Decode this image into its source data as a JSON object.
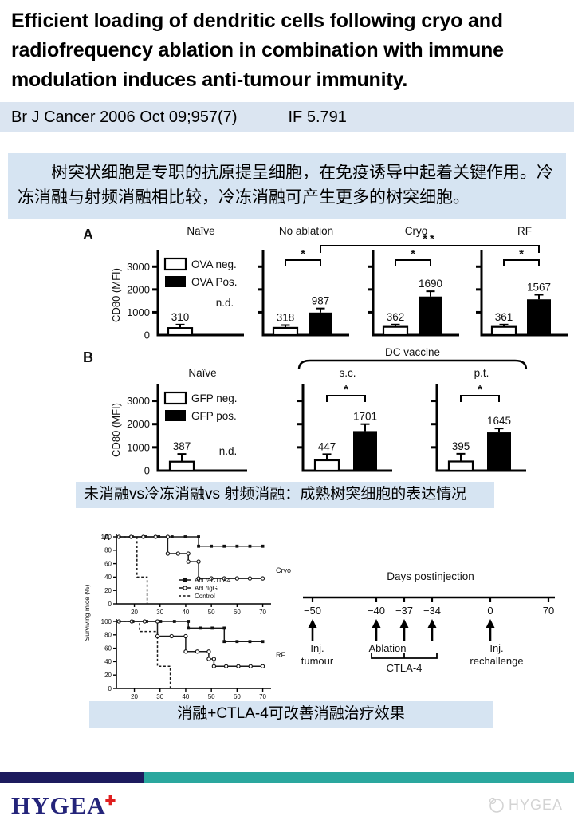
{
  "colors": {
    "bar_blue": "#dbe5f1",
    "box_blue": "#d6e4f2",
    "footer_navy": "#1d1b5e",
    "footer_teal": "#2aa79e",
    "logo_navy": "#24247a",
    "logo_red": "#e01f1f",
    "watermark_gray": "#d3d3d3"
  },
  "header": {
    "title": "Efficient loading of dendritic cells following cryo and radiofrequency ablation in combination with immune modulation induces anti-tumour immunity.",
    "citation": "Br J Cancer 2006 Oct 09;957(7)",
    "impact_factor": "IF 5.791"
  },
  "summary": {
    "text": "树突状细胞是专职的抗原提呈细胞，在免疫诱导中起着关键作用。冷冻消融与射频消融相比较，冷冻消融可产生更多的树突细胞。"
  },
  "captions": {
    "figure1": "未消融vs冷冻消融vs 射频消融：成熟树突细胞的表达情况",
    "figure2": "消融+CTLA-4可改善消融治疗效果"
  },
  "footer": {
    "logo_text": "HYGEA",
    "logo_cross": "✚",
    "watermark_text": "HYGEA"
  },
  "chart_data": [
    {
      "id": "fig1_panel_A",
      "type": "bar",
      "panel_label": "A",
      "ylabel": "CD80 (MFI)",
      "yticks": [
        0,
        1000,
        2000,
        3000
      ],
      "ylim": [
        0,
        3500
      ],
      "legend": [
        "OVA neg.",
        "OVA Pos."
      ],
      "nd_label": "n.d.",
      "categories": [
        "Naïve",
        "No ablation",
        "Cryo",
        "RF"
      ],
      "series": [
        {
          "name": "OVA neg.",
          "fill": "white",
          "values": [
            310,
            318,
            362,
            361
          ],
          "errors": [
            150,
            120,
            100,
            100
          ]
        },
        {
          "name": "OVA Pos.",
          "fill": "black",
          "values": [
            null,
            987,
            1690,
            1567
          ],
          "errors": [
            null,
            180,
            230,
            200
          ]
        }
      ],
      "group_sig": [
        null,
        "*",
        "*",
        "*"
      ],
      "span_sig": {
        "from_group": 1,
        "to_group": 3,
        "label": "**"
      }
    },
    {
      "id": "fig1_panel_B",
      "type": "bar",
      "panel_label": "B",
      "ylabel": "CD80 (MFI)",
      "yticks": [
        0,
        1000,
        2000,
        3000
      ],
      "ylim": [
        0,
        3500
      ],
      "legend": [
        "GFP neg.",
        "GFP pos."
      ],
      "nd_label": "n.d.",
      "categories": [
        "Naïve",
        "s.c.",
        "p.t."
      ],
      "series": [
        {
          "name": "GFP neg.",
          "fill": "white",
          "values": [
            387,
            447,
            395
          ],
          "errors": [
            330,
            260,
            330
          ]
        },
        {
          "name": "GFP pos.",
          "fill": "black",
          "values": [
            null,
            1701,
            1645
          ],
          "errors": [
            null,
            300,
            170
          ]
        }
      ],
      "group_sig": [
        null,
        "*",
        "*"
      ],
      "brace": {
        "from_group": 1,
        "to_group": 2,
        "label": "DC vaccine"
      }
    },
    {
      "id": "fig2_survival",
      "type": "line",
      "subtype": "kaplan-meier-step",
      "panel_label": "A",
      "ylabel": "Surviving mice (%)",
      "xlim": [
        13,
        72
      ],
      "xticks": [
        20,
        30,
        40,
        50,
        60,
        70
      ],
      "yticks": [
        0,
        20,
        40,
        60,
        80,
        100
      ],
      "legend": [
        "Abl./aCTLA4",
        "Abl./IgG",
        "Control"
      ],
      "panels": [
        {
          "label": "Cryo",
          "series": [
            {
              "name": "Abl./aCTLA4",
              "marker": "filled-square",
              "line": "solid",
              "x": [
                14,
                45,
                45,
                70
              ],
              "y": [
                100,
                100,
                86,
                86
              ]
            },
            {
              "name": "Abl./IgG",
              "marker": "open-circle",
              "line": "solid",
              "x": [
                14,
                33,
                33,
                41,
                41,
                45,
                45,
                70
              ],
              "y": [
                100,
                100,
                75,
                75,
                63,
                63,
                38,
                38
              ]
            },
            {
              "name": "Control",
              "marker": "none",
              "line": "dashed",
              "x": [
                14,
                21,
                21,
                25,
                25
              ],
              "y": [
                100,
                100,
                40,
                40,
                0
              ]
            }
          ]
        },
        {
          "label": "RF",
          "series": [
            {
              "name": "Abl./aCTLA4",
              "marker": "filled-square",
              "line": "solid",
              "x": [
                14,
                41,
                41,
                55,
                55,
                70
              ],
              "y": [
                100,
                100,
                90,
                90,
                70,
                70
              ]
            },
            {
              "name": "Abl./IgG",
              "marker": "open-circle",
              "line": "solid",
              "x": [
                14,
                29,
                29,
                40,
                40,
                49,
                49,
                51,
                51,
                70
              ],
              "y": [
                100,
                100,
                78,
                78,
                55,
                55,
                44,
                44,
                33,
                33
              ]
            },
            {
              "name": "Control",
              "marker": "none",
              "line": "dashed",
              "x": [
                14,
                22,
                22,
                29,
                29,
                34,
                34
              ],
              "y": [
                100,
                100,
                85,
                85,
                33,
                33,
                0
              ]
            }
          ]
        }
      ]
    },
    {
      "id": "fig2_timeline",
      "type": "line",
      "subtype": "timeline",
      "title": "Days postinjection",
      "tick_days": [
        -50,
        -40,
        -37,
        -34,
        0,
        70
      ],
      "tick_labels": [
        "−50",
        "−40",
        "−37",
        "−34",
        "0",
        "70"
      ],
      "arrow_days": [
        -50,
        -40,
        -37,
        -34,
        0
      ],
      "event_labels": [
        {
          "day": -50,
          "lines": [
            "Inj.",
            "tumour"
          ]
        },
        {
          "day": -40,
          "lines": [
            "Ablation"
          ]
        },
        {
          "day": 0,
          "lines": [
            "Inj.",
            "rechallenge"
          ]
        }
      ],
      "bracket": {
        "from_day": -40,
        "to_day": -34,
        "label": "CTLA-4"
      }
    }
  ]
}
